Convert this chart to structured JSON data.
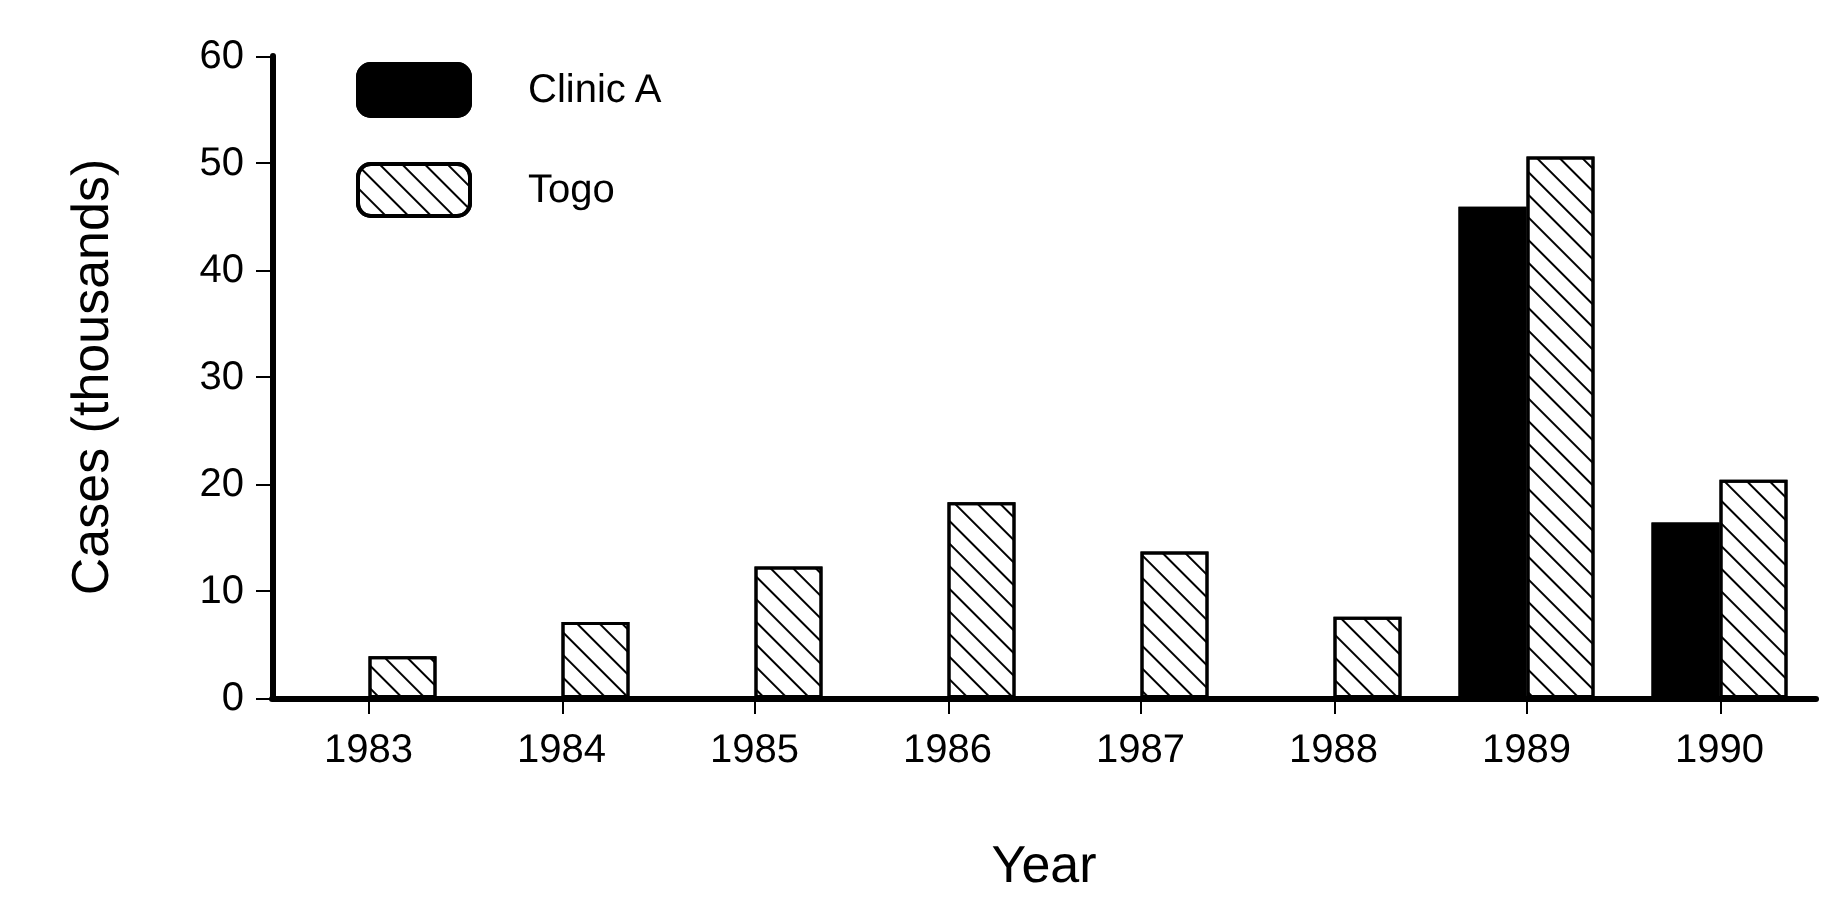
{
  "chart_data": {
    "type": "bar",
    "xlabel": "Year",
    "ylabel": "Cases (thousands)",
    "categories": [
      "1983",
      "1984",
      "1985",
      "1986",
      "1987",
      "1988",
      "1989",
      "1990"
    ],
    "series": [
      {
        "name": "Clinic A",
        "color": "#000000",
        "values": [
          null,
          null,
          null,
          null,
          null,
          null,
          45.9,
          16.4
        ]
      },
      {
        "name": "Togo",
        "color": "#ffffff",
        "values": [
          3.9,
          7.1,
          12.3,
          18.3,
          13.7,
          7.6,
          50.6,
          20.4
        ]
      }
    ],
    "ylim": [
      0,
      60
    ],
    "yticks": [
      0,
      10,
      20,
      30,
      40,
      50,
      60
    ],
    "grid": false,
    "legend": "top left"
  }
}
